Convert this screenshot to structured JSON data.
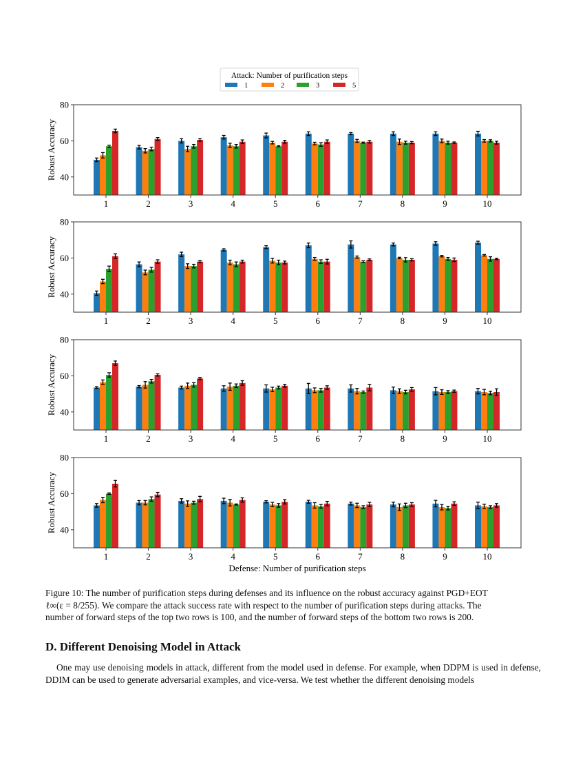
{
  "legend": {
    "title": "Attack: Number of purification steps",
    "entries": [
      "1",
      "2",
      "3",
      "5"
    ]
  },
  "colors": [
    "#1f77b4",
    "#ff7f0e",
    "#2ca02c",
    "#d62728"
  ],
  "chart_data": [
    {
      "type": "bar",
      "ylabel": "Robust Accuracy",
      "xlabel": "",
      "ylim": [
        30,
        80
      ],
      "yticks": [
        "40",
        "60",
        "80"
      ],
      "categories": [
        "1",
        "2",
        "3",
        "4",
        "5",
        "6",
        "7",
        "8",
        "9",
        "10"
      ],
      "series": [
        {
          "name": "1",
          "values": [
            49.5,
            56.5,
            60,
            62,
            63,
            64,
            64,
            64,
            64,
            64
          ],
          "errors": [
            1,
            1,
            1.2,
            1,
            1.3,
            1,
            0.6,
            1,
            1,
            1.3
          ]
        },
        {
          "name": "2",
          "values": [
            52,
            54.5,
            55.5,
            57.5,
            59,
            58.5,
            60,
            59.5,
            60,
            60
          ],
          "errors": [
            1.5,
            1.2,
            1.5,
            1.2,
            0.7,
            0.7,
            0.8,
            1.5,
            1,
            0.7
          ]
        },
        {
          "name": "3",
          "values": [
            57,
            55.5,
            57,
            57,
            57,
            58,
            59,
            59,
            59,
            60
          ],
          "errors": [
            0.6,
            1,
            1,
            1,
            0.3,
            1,
            0.3,
            0.8,
            0.8,
            0.6
          ]
        },
        {
          "name": "5",
          "values": [
            65.5,
            61,
            60.5,
            59.5,
            59.5,
            59.5,
            59.5,
            59,
            59,
            59
          ],
          "errors": [
            1,
            0.8,
            0.7,
            1,
            0.8,
            1,
            0.7,
            0.6,
            0.4,
            0.8
          ]
        }
      ]
    },
    {
      "type": "bar",
      "ylabel": "Robust Accuracy",
      "xlabel": "",
      "ylim": [
        30,
        80
      ],
      "yticks": [
        "40",
        "60",
        "80"
      ],
      "categories": [
        "1",
        "2",
        "3",
        "4",
        "5",
        "6",
        "7",
        "8",
        "9",
        "10"
      ],
      "series": [
        {
          "name": "1",
          "values": [
            40.5,
            56.5,
            62,
            64.5,
            66,
            67,
            67.5,
            67.5,
            68,
            68.5
          ],
          "errors": [
            1.2,
            1.3,
            1.2,
            0.6,
            0.8,
            1.3,
            2,
            0.8,
            1,
            0.8
          ]
        },
        {
          "name": "2",
          "values": [
            47,
            52,
            55.5,
            57.5,
            58.5,
            59.5,
            60.5,
            60,
            61,
            61.5
          ],
          "errors": [
            1.2,
            1.3,
            1.3,
            1.3,
            1.3,
            0.8,
            0.6,
            0.4,
            0.4,
            0.4
          ]
        },
        {
          "name": "3",
          "values": [
            54,
            53.5,
            55.5,
            56.5,
            57.5,
            58,
            58,
            59,
            59.5,
            59.5
          ],
          "errors": [
            1.5,
            1.3,
            1,
            1.3,
            1.3,
            1,
            0.5,
            1.2,
            0.8,
            1.2
          ]
        },
        {
          "name": "5",
          "values": [
            61,
            58,
            58,
            58,
            57.5,
            58,
            59,
            59,
            59,
            59.5
          ],
          "errors": [
            1.3,
            1,
            0.6,
            0.8,
            0.8,
            1.3,
            0.5,
            0.6,
            1,
            0.4
          ]
        }
      ]
    },
    {
      "type": "bar",
      "ylabel": "Robust Accuracy",
      "xlabel": "",
      "ylim": [
        30,
        80
      ],
      "yticks": [
        "40",
        "60",
        "80"
      ],
      "categories": [
        "1",
        "2",
        "3",
        "4",
        "5",
        "6",
        "7",
        "8",
        "9",
        "10"
      ],
      "series": [
        {
          "name": "1",
          "values": [
            53.5,
            54,
            53.5,
            53,
            53,
            53,
            53,
            52,
            51.5,
            51.5
          ],
          "errors": [
            0.5,
            0.6,
            0.8,
            1.5,
            2,
            2.8,
            2,
            1.8,
            2,
            1.5
          ]
        },
        {
          "name": "2",
          "values": [
            56.5,
            55,
            54.5,
            54,
            52.5,
            52,
            51.5,
            51.5,
            51,
            51
          ],
          "errors": [
            1.2,
            1.8,
            1.5,
            2,
            1.2,
            1.3,
            1.5,
            1.3,
            1.3,
            1.5
          ]
        },
        {
          "name": "3",
          "values": [
            60.5,
            57,
            55,
            54.5,
            53.5,
            52,
            51,
            51,
            51,
            50.5
          ],
          "errors": [
            1.2,
            1,
            1.2,
            1,
            0.8,
            1,
            0.6,
            1,
            0.8,
            1
          ]
        },
        {
          "name": "5",
          "values": [
            67,
            60.5,
            58.5,
            56,
            54.5,
            53.5,
            53.5,
            52.5,
            51.5,
            51
          ],
          "errors": [
            1.2,
            0.6,
            0.6,
            1.3,
            0.8,
            1,
            1.8,
            1,
            0.6,
            1.8
          ]
        }
      ]
    },
    {
      "type": "bar",
      "ylabel": "Robust Accuracy",
      "xlabel": "Defense: Number of purification steps",
      "ylim": [
        30,
        80
      ],
      "yticks": [
        "40",
        "60",
        "80"
      ],
      "categories": [
        "1",
        "2",
        "3",
        "4",
        "5",
        "6",
        "7",
        "8",
        "9",
        "10"
      ],
      "series": [
        {
          "name": "1",
          "values": [
            53.5,
            55,
            56,
            56,
            55.5,
            55.5,
            54.5,
            54,
            54.5,
            53.5
          ],
          "errors": [
            1,
            1.2,
            1.2,
            1.5,
            0.6,
            0.8,
            0.8,
            1.3,
            1.8,
            1.8
          ]
        },
        {
          "name": "2",
          "values": [
            56.5,
            55,
            54.5,
            55,
            54,
            53.5,
            53.5,
            52.5,
            52.5,
            53
          ],
          "errors": [
            1.5,
            1.2,
            1.5,
            1.8,
            1.2,
            1.5,
            1.2,
            1.8,
            1.5,
            1.2
          ]
        },
        {
          "name": "3",
          "values": [
            60,
            57,
            55,
            54,
            53.5,
            53,
            52.5,
            53.5,
            52,
            52.5
          ],
          "errors": [
            0.4,
            1.2,
            0.8,
            0.3,
            1,
            1,
            0.8,
            1.2,
            1,
            0.8
          ]
        },
        {
          "name": "5",
          "values": [
            65.5,
            59.5,
            57,
            56.5,
            55.5,
            54.5,
            54,
            54,
            54.5,
            53.5
          ],
          "errors": [
            1.8,
            1.2,
            1.5,
            1.2,
            1.2,
            1.2,
            1.2,
            1,
            1,
            1
          ]
        }
      ]
    }
  ],
  "caption": {
    "line1": "Figure 10:  The number of purification steps during defenses and its influence on the robust accuracy against PGD+EOT",
    "line2": "ℓ∞(ε = 8/255).  We compare the attack success rate with respect to the number of purification steps during attacks.  The",
    "line3": "number of forward steps of the top two rows is 100, and the number of forward steps of the bottom two rows is 200."
  },
  "section": {
    "heading": "D. Different Denoising Model in Attack",
    "paragraph": "One may use denoising models in attack, different from the model used in defense. For example, when DDPM is used in defense, DDIM can be used to generate adversarial examples, and vice-versa. We test whether the different denoising models"
  }
}
